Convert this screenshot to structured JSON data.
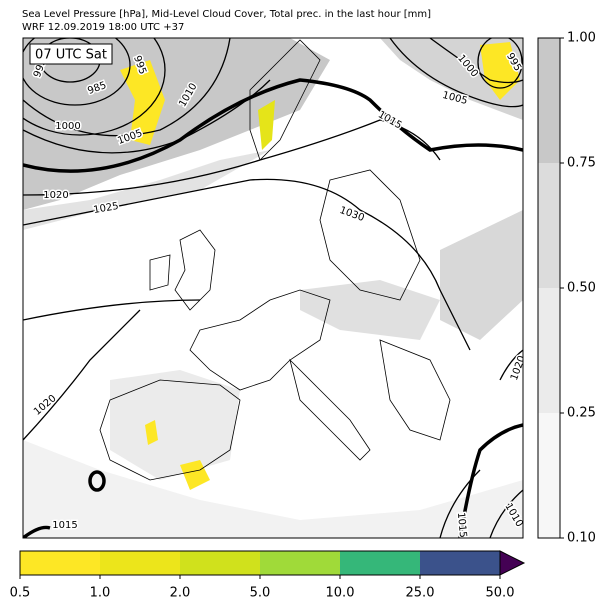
{
  "header": {
    "title_lines": [
      "Sea Level Pressure [hPa], Mid-Level Cloud Cover, Total prec. in the last hour [mm]",
      "WRF 12.09.2019 18:00 UTC +37"
    ]
  },
  "map": {
    "time_label": "07 UTC Sat",
    "isobar_labels": [
      "995",
      "985",
      "1000",
      "1005",
      "1010",
      "995",
      "1020",
      "1025",
      "1030",
      "1015",
      "1005",
      "1000",
      "995",
      "1020",
      "1015",
      "1015",
      "1010",
      "1020"
    ]
  },
  "cloud_colorbar": {
    "ticks": [
      "0.10",
      "0.25",
      "0.50",
      "0.75",
      "1.00"
    ],
    "colors": [
      "#f7f7f7",
      "#ebebeb",
      "#dcdcdc",
      "#c8c8c8"
    ]
  },
  "precip_colorbar": {
    "ticks": [
      "0.5",
      "1.0",
      "2.0",
      "5.0",
      "10.0",
      "25.0",
      "50.0"
    ],
    "colors": [
      "#fde725",
      "#ece51b",
      "#d0e11c",
      "#a0da39",
      "#35b779",
      "#3b528b"
    ],
    "extend_color": "#440154"
  }
}
